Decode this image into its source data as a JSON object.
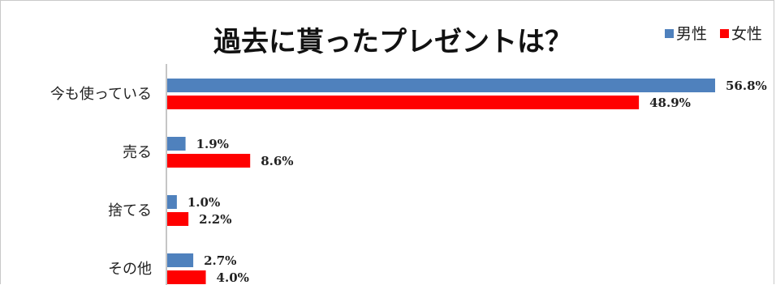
{
  "chart_data": {
    "type": "bar",
    "orientation": "horizontal",
    "title": "過去に貰ったプレゼントは？",
    "categories": [
      "今も使っている",
      "売る",
      "捨てる",
      "その他"
    ],
    "series": [
      {
        "name": "男性",
        "color": "#4f81bd",
        "values": [
          56.8,
          1.9,
          1.0,
          2.7
        ],
        "labels": [
          "56.8%",
          "1.9%",
          "1.0%",
          "2.7%"
        ]
      },
      {
        "name": "女性",
        "color": "#ff0000",
        "values": [
          48.9,
          8.6,
          2.2,
          4.0
        ],
        "labels": [
          "48.9%",
          "8.6%",
          "2.2%",
          "4.0%"
        ]
      }
    ],
    "xlim": [
      0,
      56.8
    ],
    "legend_position": "top-right",
    "grid": false
  }
}
